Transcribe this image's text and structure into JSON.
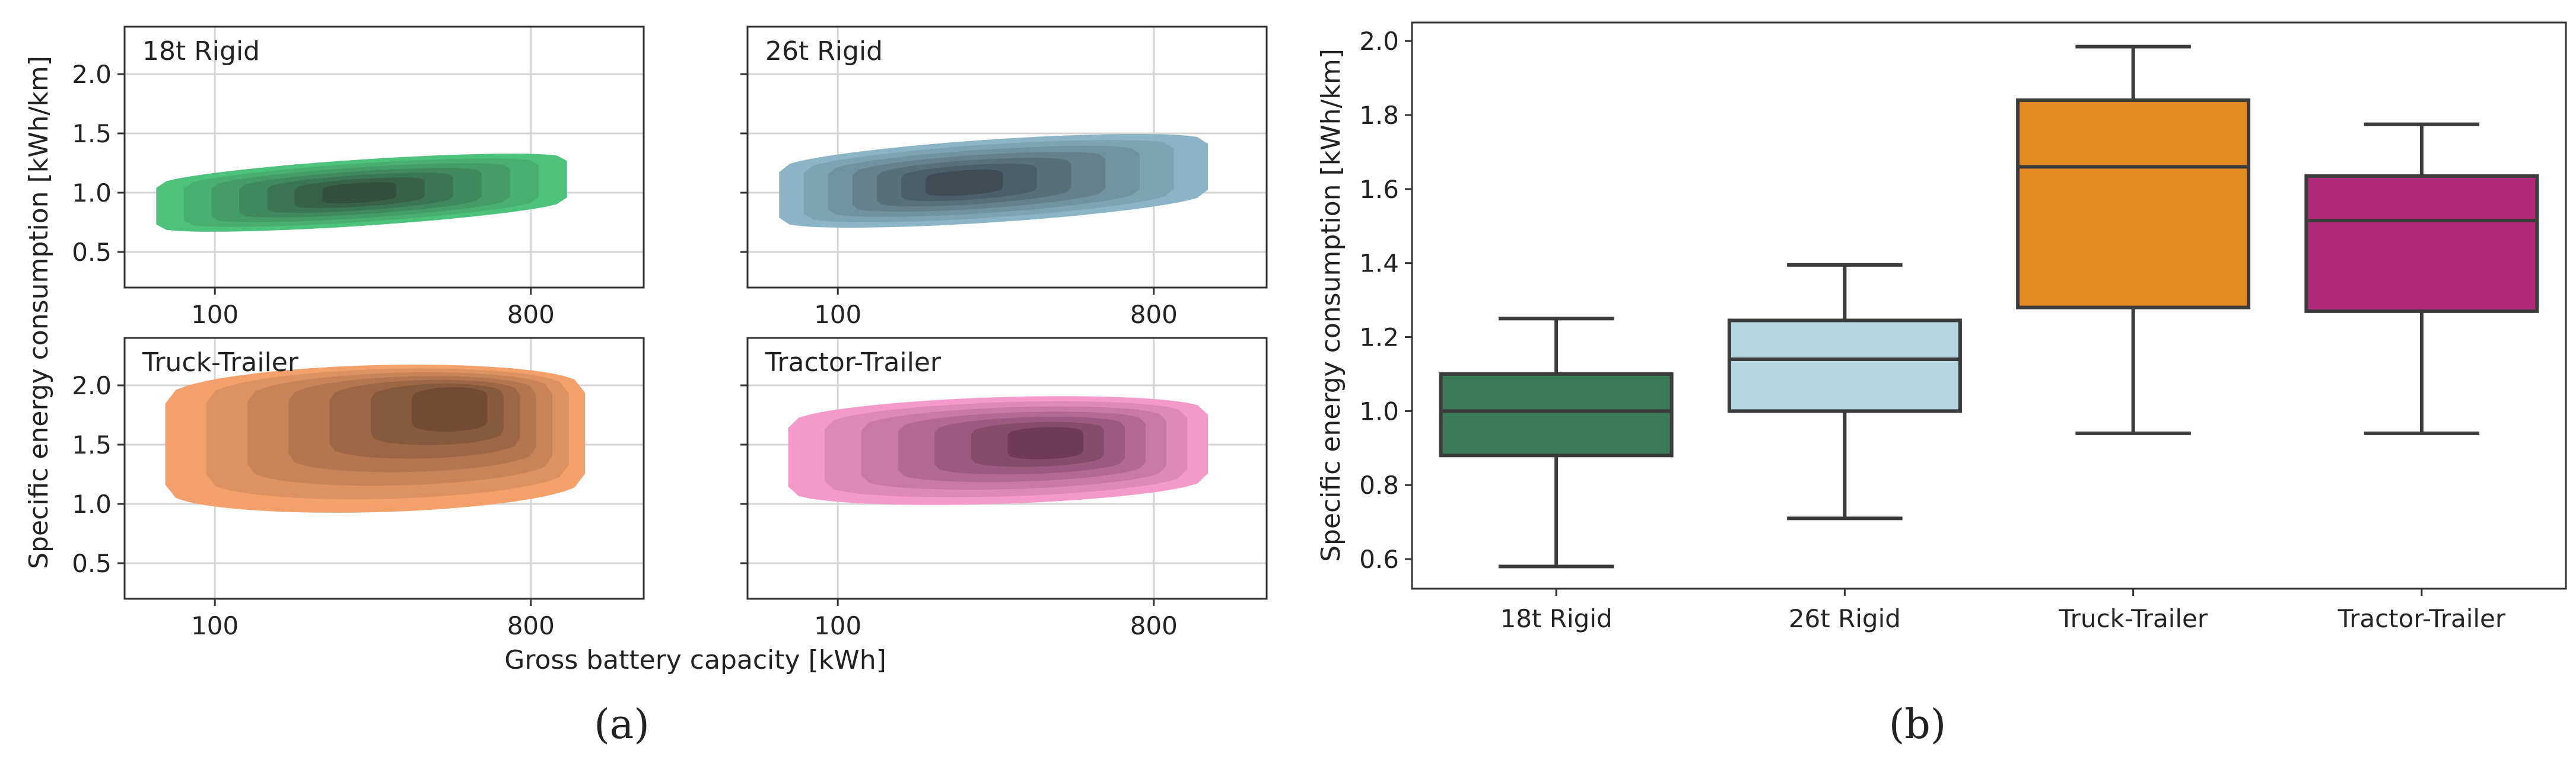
{
  "captions": {
    "left": "(a)",
    "right": "(b)"
  },
  "chart_data": [
    {
      "type": "kde_grid",
      "xlabel": "Gross battery capacity [kWh]",
      "ylabel": "Specific energy consumption [kWh/km]",
      "x_ticks": [
        100,
        800
      ],
      "y_ticks": [
        0.5,
        1.0,
        1.5,
        2.0
      ],
      "y_tick_labels": [
        "0.5",
        "1.0",
        "1.5",
        "2.0"
      ],
      "ylim": [
        0.2,
        2.4
      ],
      "xlim": [
        -100,
        1050
      ],
      "grid": true,
      "panels": [
        {
          "name": "18t Rigid",
          "color": "#4cc27a",
          "dark": "#2e3b33",
          "x_range": [
            -30,
            880
          ],
          "y_center": 1.0,
          "y_halfwidth": 0.28,
          "slope": 0.25,
          "peak_x": 420,
          "peak_y": 1.0
        },
        {
          "name": "26t Rigid",
          "color": "#8bb5c7",
          "dark": "#2f3b3f",
          "x_range": [
            -30,
            920
          ],
          "y_center": 1.1,
          "y_halfwidth": 0.35,
          "slope": 0.25,
          "peak_x": 380,
          "peak_y": 1.1
        },
        {
          "name": "Truck-Trailer",
          "color": "#f4a06b",
          "dark": "#5a3c2a",
          "x_range": [
            -10,
            920
          ],
          "y_center": 1.55,
          "y_halfwidth": 0.62,
          "slope": 0.1,
          "peak_x": 620,
          "peak_y": 1.78
        },
        {
          "name": "Tractor-Trailer",
          "color": "#f39ac9",
          "dark": "#5a2a44",
          "x_range": [
            -10,
            920
          ],
          "y_center": 1.45,
          "y_halfwidth": 0.45,
          "slope": 0.12,
          "peak_x": 560,
          "peak_y": 1.5
        }
      ]
    },
    {
      "type": "box",
      "ylabel": "Specific energy consumption [kWh/km]",
      "ylim": [
        0.52,
        2.05
      ],
      "y_ticks": [
        0.6,
        0.8,
        1.0,
        1.2,
        1.4,
        1.6,
        1.8,
        2.0
      ],
      "y_tick_labels": [
        "0.6",
        "0.8",
        "1.0",
        "1.2",
        "1.4",
        "1.6",
        "1.8",
        "2.0"
      ],
      "categories": [
        "18t Rigid",
        "26t Rigid",
        "Truck-Trailer",
        "Tractor-Trailer"
      ],
      "boxes": [
        {
          "min": 0.58,
          "q1": 0.88,
          "median": 1.0,
          "q3": 1.1,
          "max": 1.25,
          "color": "#3c7b57"
        },
        {
          "min": 0.71,
          "q1": 1.0,
          "median": 1.14,
          "q3": 1.245,
          "max": 1.395,
          "color": "#b5d5e1"
        },
        {
          "min": 0.94,
          "q1": 1.28,
          "median": 1.66,
          "q3": 1.84,
          "max": 1.985,
          "color": "#e28a21"
        },
        {
          "min": 0.94,
          "q1": 1.27,
          "median": 1.515,
          "q3": 1.635,
          "max": 1.775,
          "color": "#b22b7b"
        }
      ],
      "grid": false
    }
  ]
}
